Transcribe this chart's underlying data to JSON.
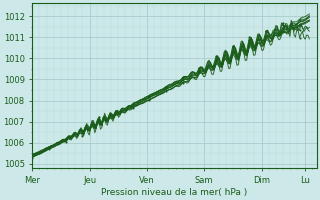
{
  "xlabel": "Pression niveau de la mer( hPa )",
  "ylim": [
    1004.8,
    1012.6
  ],
  "yticks": [
    1005,
    1006,
    1007,
    1008,
    1009,
    1010,
    1011,
    1012
  ],
  "day_labels": [
    "Mer",
    "Jeu",
    "Ven",
    "Sam",
    "Dim",
    "Lu"
  ],
  "day_positions": [
    0,
    24,
    48,
    72,
    96,
    114
  ],
  "xlim": [
    0,
    119
  ],
  "bg_color": "#cce8e8",
  "grid_major_color": "#aacccc",
  "grid_minor_color": "#bbdada",
  "line_color": "#1a5c1a",
  "marker_color": "#1a5c1a"
}
